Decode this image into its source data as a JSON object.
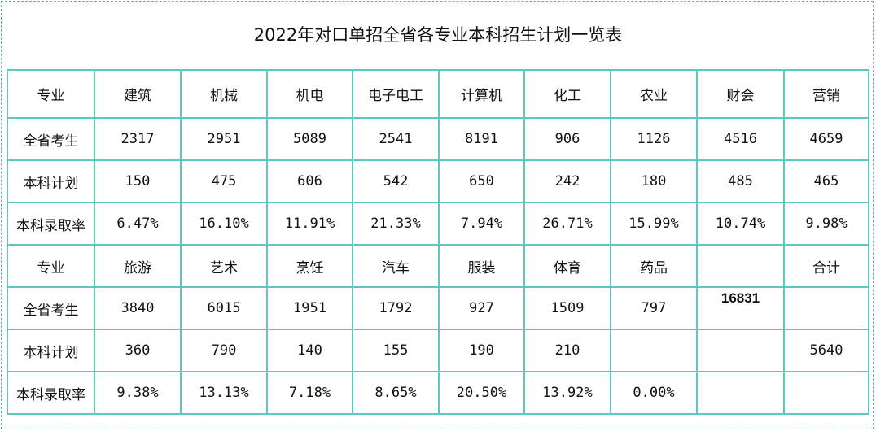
{
  "title": "2022年对口单招全省各专业本科招生计划一览表",
  "section1": {
    "row_labels": [
      "专业",
      "全省考生",
      "本科计划",
      "本科录取率"
    ],
    "majors": [
      "建筑",
      "机械",
      "机电",
      "电子电工",
      "计算机",
      "化工",
      "农业",
      "财会",
      "营销"
    ],
    "candidates": [
      "2317",
      "2951",
      "5089",
      "2541",
      "8191",
      "906",
      "1126",
      "4516",
      "4659"
    ],
    "plan": [
      "150",
      "475",
      "606",
      "542",
      "650",
      "242",
      "180",
      "485",
      "465"
    ],
    "rate": [
      "6.47%",
      "16.10%",
      "11.91%",
      "21.33%",
      "7.94%",
      "26.71%",
      "15.99%",
      "10.74%",
      "9.98%"
    ]
  },
  "section2": {
    "row_labels": [
      "专业",
      "全省考生",
      "本科计划",
      "本科录取率"
    ],
    "majors": [
      "旅游",
      "艺术",
      "烹饪",
      "汽车",
      "服装",
      "体育",
      "药品",
      "",
      "合计"
    ],
    "candidates": [
      "3840",
      "6015",
      "1951",
      "1792",
      "927",
      "1509",
      "797",
      "16831",
      ""
    ],
    "plan": [
      "360",
      "790",
      "140",
      "155",
      "190",
      "210",
      "",
      "",
      "5640"
    ],
    "rate": [
      "9.38%",
      "13.13%",
      "7.18%",
      "8.65%",
      "20.50%",
      "13.92%",
      "0.00%",
      "",
      ""
    ]
  }
}
